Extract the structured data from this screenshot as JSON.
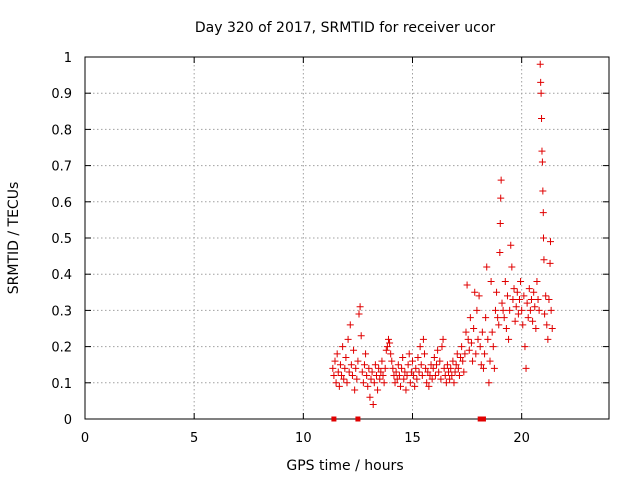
{
  "chart_data": {
    "type": "scatter",
    "title": "Day 320 of 2017, SRMTID for receiver ucor",
    "xlabel": "GPS time / hours",
    "ylabel": "SRMTID / TECUs",
    "xlim": [
      0,
      24
    ],
    "ylim": [
      0,
      1
    ],
    "grid": true,
    "legend": "none",
    "marker": "+",
    "color": "#e00000",
    "x_ticks": [
      0,
      5,
      10,
      15,
      20
    ],
    "x_tick_labels": [
      "0",
      "5",
      "10",
      "15",
      "20"
    ],
    "y_ticks": [
      0,
      0.1,
      0.2,
      0.3,
      0.4,
      0.5,
      0.6,
      0.7,
      0.8,
      0.9,
      1
    ],
    "y_tick_labels": [
      "0",
      "0.1",
      "0.2",
      "0.3",
      "0.4",
      "0.5",
      "0.6",
      "0.7",
      "0.8",
      "0.9",
      "1"
    ],
    "series": [
      {
        "name": "SRMTID",
        "marker": "+",
        "points": [
          [
            11.35,
            0.14
          ],
          [
            11.4,
            0.12
          ],
          [
            11.45,
            0.16
          ],
          [
            11.5,
            0.1
          ],
          [
            11.55,
            0.18
          ],
          [
            11.6,
            0.13
          ],
          [
            11.65,
            0.09
          ],
          [
            11.7,
            0.15
          ],
          [
            11.75,
            0.12
          ],
          [
            11.8,
            0.2
          ],
          [
            11.85,
            0.11
          ],
          [
            11.9,
            0.14
          ],
          [
            11.95,
            0.17
          ],
          [
            12.0,
            0.1
          ],
          [
            12.05,
            0.22
          ],
          [
            12.1,
            0.13
          ],
          [
            12.15,
            0.26
          ],
          [
            12.2,
            0.15
          ],
          [
            12.25,
            0.12
          ],
          [
            12.3,
            0.19
          ],
          [
            12.35,
            0.08
          ],
          [
            12.4,
            0.14
          ],
          [
            12.45,
            0.11
          ],
          [
            12.5,
            0.16
          ],
          [
            12.55,
            0.29
          ],
          [
            12.6,
            0.31
          ],
          [
            12.65,
            0.23
          ],
          [
            12.7,
            0.13
          ],
          [
            12.75,
            0.1
          ],
          [
            12.8,
            0.15
          ],
          [
            12.85,
            0.18
          ],
          [
            12.9,
            0.12
          ],
          [
            12.95,
            0.09
          ],
          [
            13.0,
            0.14
          ],
          [
            13.05,
            0.06
          ],
          [
            13.1,
            0.11
          ],
          [
            13.15,
            0.13
          ],
          [
            13.2,
            0.04
          ],
          [
            13.25,
            0.1
          ],
          [
            13.3,
            0.15
          ],
          [
            13.35,
            0.12
          ],
          [
            13.4,
            0.08
          ],
          [
            13.45,
            0.14
          ],
          [
            13.5,
            0.11
          ],
          [
            13.55,
            0.13
          ],
          [
            13.6,
            0.16
          ],
          [
            13.65,
            0.12
          ],
          [
            13.7,
            0.1
          ],
          [
            13.75,
            0.14
          ],
          [
            13.8,
            0.19
          ],
          [
            13.85,
            0.2
          ],
          [
            13.9,
            0.22
          ],
          [
            13.95,
            0.21
          ],
          [
            14.0,
            0.18
          ],
          [
            14.05,
            0.16
          ],
          [
            14.1,
            0.14
          ],
          [
            14.15,
            0.12
          ],
          [
            14.2,
            0.1
          ],
          [
            14.25,
            0.13
          ],
          [
            14.3,
            0.11
          ],
          [
            14.35,
            0.15
          ],
          [
            14.4,
            0.12
          ],
          [
            14.45,
            0.09
          ],
          [
            14.5,
            0.14
          ],
          [
            14.55,
            0.17
          ],
          [
            14.6,
            0.11
          ],
          [
            14.65,
            0.13
          ],
          [
            14.7,
            0.08
          ],
          [
            14.75,
            0.12
          ],
          [
            14.8,
            0.15
          ],
          [
            14.85,
            0.18
          ],
          [
            14.9,
            0.1
          ],
          [
            14.95,
            0.13
          ],
          [
            15.0,
            0.16
          ],
          [
            15.05,
            0.12
          ],
          [
            15.1,
            0.09
          ],
          [
            15.15,
            0.14
          ],
          [
            15.2,
            0.11
          ],
          [
            15.25,
            0.17
          ],
          [
            15.3,
            0.13
          ],
          [
            15.35,
            0.2
          ],
          [
            15.4,
            0.15
          ],
          [
            15.45,
            0.12
          ],
          [
            15.5,
            0.22
          ],
          [
            15.55,
            0.18
          ],
          [
            15.6,
            0.14
          ],
          [
            15.65,
            0.1
          ],
          [
            15.7,
            0.13
          ],
          [
            15.75,
            0.09
          ],
          [
            15.8,
            0.12
          ],
          [
            15.85,
            0.15
          ],
          [
            15.9,
            0.11
          ],
          [
            15.95,
            0.14
          ],
          [
            16.0,
            0.17
          ],
          [
            16.05,
            0.12
          ],
          [
            16.1,
            0.15
          ],
          [
            16.15,
            0.19
          ],
          [
            16.2,
            0.13
          ],
          [
            16.25,
            0.16
          ],
          [
            16.3,
            0.11
          ],
          [
            16.35,
            0.2
          ],
          [
            16.4,
            0.22
          ],
          [
            16.45,
            0.14
          ],
          [
            16.5,
            0.12
          ],
          [
            16.55,
            0.1
          ],
          [
            16.6,
            0.15
          ],
          [
            16.65,
            0.13
          ],
          [
            16.7,
            0.11
          ],
          [
            16.75,
            0.14
          ],
          [
            16.8,
            0.12
          ],
          [
            16.85,
            0.16
          ],
          [
            16.9,
            0.1
          ],
          [
            16.95,
            0.13
          ],
          [
            17.0,
            0.15
          ],
          [
            17.05,
            0.18
          ],
          [
            17.1,
            0.14
          ],
          [
            17.15,
            0.12
          ],
          [
            17.2,
            0.17
          ],
          [
            17.25,
            0.2
          ],
          [
            17.3,
            0.16
          ],
          [
            17.35,
            0.13
          ],
          [
            17.4,
            0.18
          ],
          [
            17.45,
            0.24
          ],
          [
            17.5,
            0.37
          ],
          [
            17.55,
            0.22
          ],
          [
            17.6,
            0.19
          ],
          [
            17.65,
            0.28
          ],
          [
            17.7,
            0.21
          ],
          [
            17.75,
            0.16
          ],
          [
            17.8,
            0.25
          ],
          [
            17.85,
            0.35
          ],
          [
            17.9,
            0.18
          ],
          [
            17.95,
            0.3
          ],
          [
            18.0,
            0.22
          ],
          [
            18.05,
            0.34
          ],
          [
            18.1,
            0.2
          ],
          [
            18.15,
            0.15
          ],
          [
            18.2,
            0.24
          ],
          [
            18.25,
            0.14
          ],
          [
            18.3,
            0.18
          ],
          [
            18.35,
            0.28
          ],
          [
            18.4,
            0.42
          ],
          [
            18.45,
            0.22
          ],
          [
            18.5,
            0.1
          ],
          [
            18.55,
            0.16
          ],
          [
            18.6,
            0.38
          ],
          [
            18.65,
            0.24
          ],
          [
            18.7,
            0.2
          ],
          [
            18.75,
            0.14
          ],
          [
            18.8,
            0.3
          ],
          [
            18.85,
            0.35
          ],
          [
            18.9,
            0.28
          ],
          [
            18.95,
            0.26
          ],
          [
            19.0,
            0.46
          ],
          [
            19.02,
            0.54
          ],
          [
            19.04,
            0.61
          ],
          [
            19.06,
            0.66
          ],
          [
            19.1,
            0.32
          ],
          [
            19.15,
            0.3
          ],
          [
            19.2,
            0.28
          ],
          [
            19.25,
            0.38
          ],
          [
            19.3,
            0.25
          ],
          [
            19.35,
            0.34
          ],
          [
            19.4,
            0.22
          ],
          [
            19.45,
            0.3
          ],
          [
            19.5,
            0.48
          ],
          [
            19.55,
            0.42
          ],
          [
            19.6,
            0.33
          ],
          [
            19.65,
            0.36
          ],
          [
            19.7,
            0.27
          ],
          [
            19.75,
            0.31
          ],
          [
            19.8,
            0.35
          ],
          [
            19.85,
            0.29
          ],
          [
            19.9,
            0.33
          ],
          [
            19.95,
            0.38
          ],
          [
            20.0,
            0.3
          ],
          [
            20.05,
            0.26
          ],
          [
            20.1,
            0.34
          ],
          [
            20.15,
            0.2
          ],
          [
            20.2,
            0.14
          ],
          [
            20.25,
            0.32
          ],
          [
            20.3,
            0.28
          ],
          [
            20.35,
            0.36
          ],
          [
            20.4,
            0.3
          ],
          [
            20.45,
            0.33
          ],
          [
            20.5,
            0.27
          ],
          [
            20.55,
            0.35
          ],
          [
            20.6,
            0.31
          ],
          [
            20.65,
            0.25
          ],
          [
            20.7,
            0.38
          ],
          [
            20.75,
            0.33
          ],
          [
            20.8,
            0.3
          ],
          [
            20.85,
            0.98
          ],
          [
            20.87,
            0.93
          ],
          [
            20.89,
            0.9
          ],
          [
            20.91,
            0.83
          ],
          [
            20.93,
            0.74
          ],
          [
            20.95,
            0.71
          ],
          [
            20.97,
            0.63
          ],
          [
            20.99,
            0.57
          ],
          [
            21.0,
            0.5
          ],
          [
            21.02,
            0.44
          ],
          [
            21.05,
            0.29
          ],
          [
            21.1,
            0.34
          ],
          [
            21.15,
            0.26
          ],
          [
            21.2,
            0.22
          ],
          [
            21.25,
            0.33
          ],
          [
            21.3,
            0.43
          ],
          [
            21.32,
            0.49
          ],
          [
            21.35,
            0.3
          ],
          [
            21.4,
            0.25
          ]
        ]
      }
    ],
    "rug": {
      "y": 0,
      "marker": "square",
      "x": [
        11.4,
        12.5,
        18.1,
        18.15,
        18.2,
        18.25
      ]
    }
  }
}
